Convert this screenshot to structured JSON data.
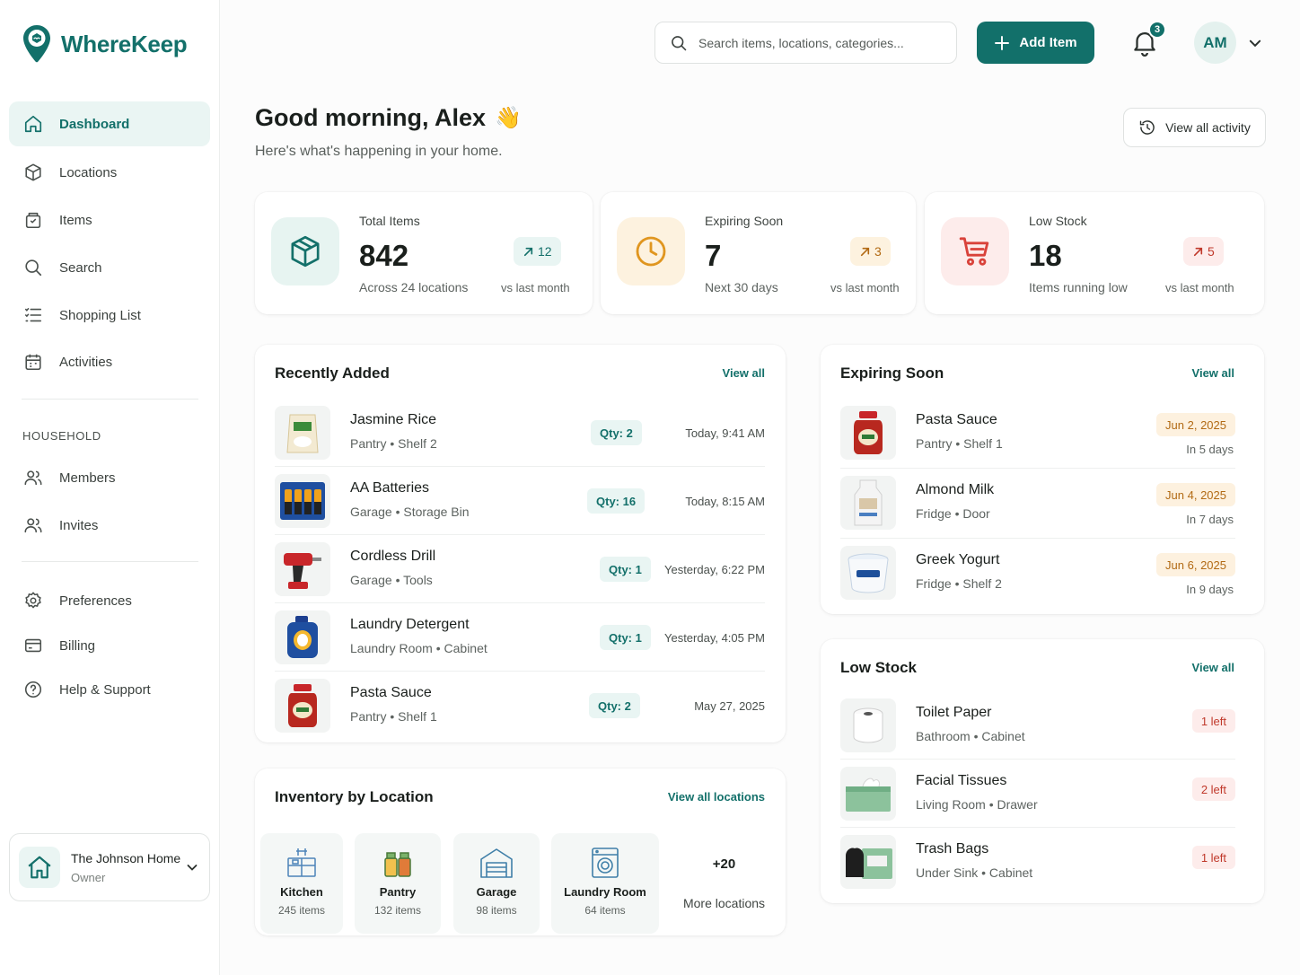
{
  "app": {
    "name": "WhereKeep"
  },
  "sidebar": {
    "nav": [
      {
        "label": "Dashboard"
      },
      {
        "label": "Locations"
      },
      {
        "label": "Items"
      },
      {
        "label": "Search"
      },
      {
        "label": "Shopping List"
      },
      {
        "label": "Activities"
      }
    ],
    "household_label": "HOUSEHOLD",
    "household": [
      {
        "label": "Members"
      },
      {
        "label": "Invites"
      }
    ],
    "settings": [
      {
        "label": "Preferences"
      },
      {
        "label": "Billing"
      },
      {
        "label": "Help & Support"
      }
    ],
    "home": {
      "name": "The Johnson Home",
      "role": "Owner"
    }
  },
  "header": {
    "search_placeholder": "Search items, locations, categories...",
    "add_label": "Add Item",
    "notification_count": "3",
    "avatar_initials": "AM"
  },
  "greeting": {
    "title": "Good morning, Alex",
    "emoji": "👋",
    "subtitle": "Here's what's happening in your home.",
    "activity_label": "View all activity"
  },
  "stats": [
    {
      "label": "Total Items",
      "value": "842",
      "sub": "Across 24 locations",
      "delta": "12",
      "vs": "vs last month"
    },
    {
      "label": "Expiring Soon",
      "value": "7",
      "sub": "Next 30 days",
      "delta": "3",
      "vs": "vs last month"
    },
    {
      "label": "Low Stock",
      "value": "18",
      "sub": "Items running low",
      "delta": "5",
      "vs": "vs last month"
    }
  ],
  "recent": {
    "title": "Recently Added",
    "view_all": "View all",
    "items": [
      {
        "name": "Jasmine Rice",
        "location": "Pantry • Shelf 2",
        "qty": "Qty: 2",
        "when": "Today, 9:41 AM"
      },
      {
        "name": "AA Batteries",
        "location": "Garage • Storage Bin",
        "qty": "Qty: 16",
        "when": "Today, 8:15 AM"
      },
      {
        "name": "Cordless Drill",
        "location": "Garage • Tools",
        "qty": "Qty: 1",
        "when": "Yesterday, 6:22 PM"
      },
      {
        "name": "Laundry Detergent",
        "location": "Laundry Room • Cabinet",
        "qty": "Qty: 1",
        "when": "Yesterday, 4:05 PM"
      },
      {
        "name": "Pasta Sauce",
        "location": "Pantry • Shelf 1",
        "qty": "Qty: 2",
        "when": "May 27, 2025"
      }
    ]
  },
  "expiring": {
    "title": "Expiring Soon",
    "view_all": "View all",
    "items": [
      {
        "name": "Pasta Sauce",
        "location": "Pantry • Shelf 1",
        "date": "Jun 2, 2025",
        "days": "In 5 days"
      },
      {
        "name": "Almond Milk",
        "location": "Fridge • Door",
        "date": "Jun 4, 2025",
        "days": "In 7 days"
      },
      {
        "name": "Greek Yogurt",
        "location": "Fridge • Shelf 2",
        "date": "Jun 6, 2025",
        "days": "In 9 days"
      }
    ]
  },
  "lowstock": {
    "title": "Low Stock",
    "view_all": "View all",
    "items": [
      {
        "name": "Toilet Paper",
        "location": "Bathroom • Cabinet",
        "left": "1 left"
      },
      {
        "name": "Facial Tissues",
        "location": "Living Room • Drawer",
        "left": "2 left"
      },
      {
        "name": "Trash Bags",
        "location": "Under Sink • Cabinet",
        "left": "1 left"
      }
    ]
  },
  "inventory": {
    "title": "Inventory by Location",
    "view_all": "View all locations",
    "locations": [
      {
        "name": "Kitchen",
        "count": "245 items"
      },
      {
        "name": "Pantry",
        "count": "132 items"
      },
      {
        "name": "Garage",
        "count": "98 items"
      },
      {
        "name": "Laundry Room",
        "count": "64 items"
      }
    ],
    "more_count": "+20",
    "more_label": "More locations"
  },
  "colors": {
    "brand": "#12706a",
    "amber": "#e6a12a",
    "red": "#d9423a"
  }
}
